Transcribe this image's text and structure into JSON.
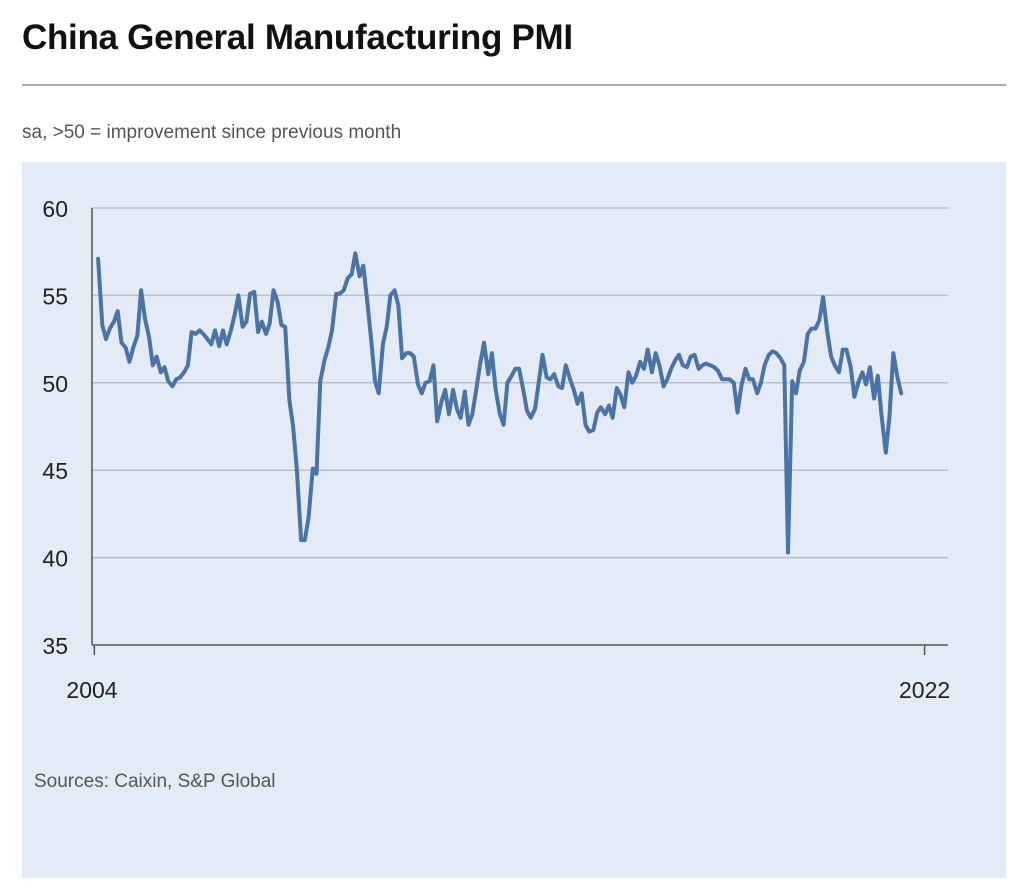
{
  "header": {
    "title": "China General Manufacturing PMI",
    "subtitle": "sa, >50 = improvement since previous month"
  },
  "footer": {
    "sources": "Sources: Caixin, S&P Global"
  },
  "colors": {
    "line": "#4a74a6",
    "panel": "#e4ebf6",
    "grid": "#b8bfc9"
  },
  "chart_data": {
    "type": "line",
    "title": "China General Manufacturing PMI",
    "subtitle": "sa, >50 = improvement since previous month",
    "xlabel": "",
    "ylabel": "",
    "x_tick_labels": [
      "2004",
      "2022"
    ],
    "xlim": [
      2004.2,
      2022.5
    ],
    "ylim": [
      35,
      60
    ],
    "y_ticks": [
      35,
      40,
      45,
      50,
      55,
      60
    ],
    "grid": true,
    "series": [
      {
        "name": "",
        "points": [
          [
            2004.33,
            57.1
          ],
          [
            2004.42,
            53.3
          ],
          [
            2004.5,
            52.5
          ],
          [
            2004.58,
            53.1
          ],
          [
            2004.67,
            53.5
          ],
          [
            2004.75,
            54.1
          ],
          [
            2004.83,
            52.3
          ],
          [
            2004.92,
            52.0
          ],
          [
            2005.0,
            51.2
          ],
          [
            2005.08,
            52.0
          ],
          [
            2005.17,
            52.7
          ],
          [
            2005.25,
            55.3
          ],
          [
            2005.33,
            53.7
          ],
          [
            2005.42,
            52.6
          ],
          [
            2005.5,
            51.0
          ],
          [
            2005.58,
            51.5
          ],
          [
            2005.67,
            50.6
          ],
          [
            2005.75,
            50.9
          ],
          [
            2005.83,
            50.1
          ],
          [
            2005.92,
            49.8
          ],
          [
            2006.0,
            50.2
          ],
          [
            2006.08,
            50.3
          ],
          [
            2006.17,
            50.6
          ],
          [
            2006.25,
            51.0
          ],
          [
            2006.33,
            52.9
          ],
          [
            2006.42,
            52.8
          ],
          [
            2006.5,
            53.0
          ],
          [
            2006.58,
            52.8
          ],
          [
            2006.67,
            52.5
          ],
          [
            2006.75,
            52.2
          ],
          [
            2006.83,
            53.0
          ],
          [
            2006.92,
            52.1
          ],
          [
            2007.0,
            53.0
          ],
          [
            2007.08,
            52.2
          ],
          [
            2007.17,
            53.0
          ],
          [
            2007.25,
            53.9
          ],
          [
            2007.33,
            55.0
          ],
          [
            2007.42,
            53.2
          ],
          [
            2007.5,
            53.5
          ],
          [
            2007.58,
            55.1
          ],
          [
            2007.67,
            55.2
          ],
          [
            2007.75,
            52.9
          ],
          [
            2007.83,
            53.5
          ],
          [
            2007.92,
            52.8
          ],
          [
            2008.0,
            53.4
          ],
          [
            2008.08,
            55.3
          ],
          [
            2008.17,
            54.6
          ],
          [
            2008.25,
            53.3
          ],
          [
            2008.33,
            53.2
          ],
          [
            2008.42,
            49.0
          ],
          [
            2008.5,
            47.5
          ],
          [
            2008.58,
            45.0
          ],
          [
            2008.67,
            41.0
          ],
          [
            2008.75,
            41.0
          ],
          [
            2008.83,
            42.3
          ],
          [
            2008.92,
            45.1
          ],
          [
            2009.0,
            44.8
          ],
          [
            2009.08,
            50.1
          ],
          [
            2009.17,
            51.3
          ],
          [
            2009.25,
            52.0
          ],
          [
            2009.33,
            53.0
          ],
          [
            2009.42,
            55.1
          ],
          [
            2009.5,
            55.1
          ],
          [
            2009.58,
            55.3
          ],
          [
            2009.67,
            56.0
          ],
          [
            2009.75,
            56.2
          ],
          [
            2009.83,
            57.4
          ],
          [
            2009.92,
            56.1
          ],
          [
            2010.0,
            56.7
          ],
          [
            2010.08,
            54.8
          ],
          [
            2010.17,
            52.4
          ],
          [
            2010.25,
            50.1
          ],
          [
            2010.33,
            49.4
          ],
          [
            2010.42,
            52.2
          ],
          [
            2010.5,
            53.2
          ],
          [
            2010.58,
            55.0
          ],
          [
            2010.67,
            55.3
          ],
          [
            2010.75,
            54.4
          ],
          [
            2010.83,
            51.4
          ],
          [
            2010.92,
            51.7
          ],
          [
            2011.0,
            51.7
          ],
          [
            2011.08,
            51.5
          ],
          [
            2011.17,
            49.9
          ],
          [
            2011.25,
            49.4
          ],
          [
            2011.33,
            50.0
          ],
          [
            2011.42,
            50.1
          ],
          [
            2011.5,
            51.0
          ],
          [
            2011.58,
            47.8
          ],
          [
            2011.67,
            48.9
          ],
          [
            2011.75,
            49.6
          ],
          [
            2011.83,
            48.2
          ],
          [
            2011.92,
            49.6
          ],
          [
            2012.0,
            48.5
          ],
          [
            2012.08,
            48.0
          ],
          [
            2012.17,
            49.5
          ],
          [
            2012.25,
            47.6
          ],
          [
            2012.33,
            48.2
          ],
          [
            2012.42,
            49.7
          ],
          [
            2012.5,
            51.1
          ],
          [
            2012.58,
            52.3
          ],
          [
            2012.67,
            50.5
          ],
          [
            2012.75,
            51.7
          ],
          [
            2012.83,
            49.6
          ],
          [
            2012.92,
            48.2
          ],
          [
            2013.0,
            47.6
          ],
          [
            2013.08,
            50.0
          ],
          [
            2013.17,
            50.4
          ],
          [
            2013.25,
            50.8
          ],
          [
            2013.33,
            50.8
          ],
          [
            2013.42,
            49.6
          ],
          [
            2013.5,
            48.4
          ],
          [
            2013.58,
            48.0
          ],
          [
            2013.67,
            48.5
          ],
          [
            2013.75,
            50.0
          ],
          [
            2013.83,
            51.6
          ],
          [
            2013.92,
            50.3
          ],
          [
            2014.0,
            50.2
          ],
          [
            2014.08,
            50.5
          ],
          [
            2014.17,
            49.8
          ],
          [
            2014.25,
            49.7
          ],
          [
            2014.33,
            51.0
          ],
          [
            2014.42,
            50.2
          ],
          [
            2014.5,
            49.6
          ],
          [
            2014.58,
            48.8
          ],
          [
            2014.67,
            49.4
          ],
          [
            2014.75,
            47.6
          ],
          [
            2014.83,
            47.2
          ],
          [
            2014.92,
            47.3
          ],
          [
            2015.0,
            48.3
          ],
          [
            2015.08,
            48.6
          ],
          [
            2015.17,
            48.2
          ],
          [
            2015.25,
            48.7
          ],
          [
            2015.33,
            48.0
          ],
          [
            2015.42,
            49.7
          ],
          [
            2015.5,
            49.3
          ],
          [
            2015.58,
            48.6
          ],
          [
            2015.67,
            50.6
          ],
          [
            2015.75,
            50.0
          ],
          [
            2015.83,
            50.4
          ],
          [
            2015.92,
            51.2
          ],
          [
            2016.0,
            50.8
          ],
          [
            2016.08,
            51.9
          ],
          [
            2016.17,
            50.6
          ],
          [
            2016.25,
            51.7
          ],
          [
            2016.33,
            51.0
          ],
          [
            2016.42,
            49.8
          ],
          [
            2016.5,
            50.2
          ],
          [
            2016.58,
            50.8
          ],
          [
            2016.67,
            51.3
          ],
          [
            2016.75,
            51.6
          ],
          [
            2016.83,
            51.0
          ],
          [
            2016.92,
            50.9
          ],
          [
            2017.0,
            51.5
          ],
          [
            2017.08,
            51.6
          ],
          [
            2017.17,
            50.8
          ],
          [
            2017.25,
            51.0
          ],
          [
            2017.33,
            51.1
          ],
          [
            2017.42,
            51.0
          ],
          [
            2017.5,
            50.9
          ],
          [
            2017.58,
            50.7
          ],
          [
            2017.67,
            50.2
          ],
          [
            2017.75,
            50.2
          ],
          [
            2017.83,
            50.2
          ],
          [
            2017.92,
            50.0
          ],
          [
            2018.0,
            48.3
          ],
          [
            2018.08,
            49.8
          ],
          [
            2018.17,
            50.8
          ],
          [
            2018.25,
            50.2
          ],
          [
            2018.33,
            50.2
          ],
          [
            2018.42,
            49.4
          ],
          [
            2018.5,
            50.0
          ],
          [
            2018.58,
            51.0
          ],
          [
            2018.67,
            51.6
          ],
          [
            2018.75,
            51.8
          ],
          [
            2018.83,
            51.7
          ],
          [
            2018.92,
            51.4
          ],
          [
            2019.0,
            51.0
          ],
          [
            2019.08,
            40.3
          ],
          [
            2019.17,
            50.1
          ],
          [
            2019.25,
            49.4
          ],
          [
            2019.33,
            50.7
          ],
          [
            2019.42,
            51.2
          ],
          [
            2019.5,
            52.8
          ],
          [
            2019.58,
            53.1
          ],
          [
            2019.67,
            53.1
          ],
          [
            2019.75,
            53.6
          ],
          [
            2019.83,
            54.9
          ],
          [
            2019.92,
            52.9
          ],
          [
            2020.0,
            51.5
          ],
          [
            2020.08,
            51.0
          ],
          [
            2020.17,
            50.6
          ],
          [
            2020.25,
            51.9
          ],
          [
            2020.33,
            51.9
          ],
          [
            2020.42,
            50.9
          ],
          [
            2020.5,
            49.2
          ],
          [
            2020.58,
            50.0
          ],
          [
            2020.67,
            50.6
          ],
          [
            2020.75,
            49.9
          ],
          [
            2020.83,
            50.9
          ],
          [
            2020.92,
            49.1
          ],
          [
            2021.0,
            50.4
          ],
          [
            2021.08,
            48.1
          ],
          [
            2021.17,
            46.0
          ],
          [
            2021.25,
            48.1
          ],
          [
            2021.33,
            51.7
          ],
          [
            2021.42,
            50.3
          ],
          [
            2021.5,
            49.4
          ]
        ]
      }
    ]
  }
}
